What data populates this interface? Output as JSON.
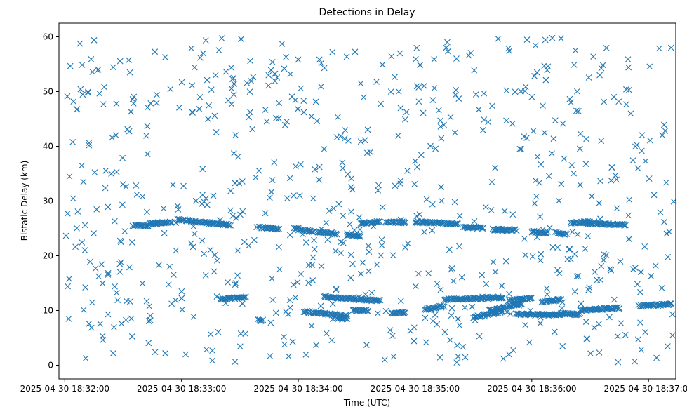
{
  "chart_data": {
    "type": "scatter",
    "title": "Detections in Delay",
    "xlabel": "Time (UTC)",
    "ylabel": "Bistatic Delay (km)",
    "marker": "x",
    "color": "#1f77b4",
    "grid": false,
    "legend": "none",
    "xlim": [
      "2025-04-30 18:31:57",
      "2025-04-30 18:37:14"
    ],
    "ylim": [
      -2.5,
      62.5
    ],
    "x_ticks": [
      "2025-04-30 18:32:00",
      "2025-04-30 18:33:00",
      "2025-04-30 18:34:00",
      "2025-04-30 18:35:00",
      "2025-04-30 18:36:00",
      "2025-04-30 18:37:00"
    ],
    "y_ticks": [
      0,
      10,
      20,
      30,
      40,
      50,
      60
    ],
    "tracks": [
      {
        "x_start": "2025-04-30 18:32:35",
        "x_end": "2025-04-30 18:32:43",
        "y_start": 25.5,
        "y_end": 25.5
      },
      {
        "x_start": "2025-04-30 18:32:43",
        "x_end": "2025-04-30 18:32:55",
        "y_start": 25.8,
        "y_end": 26.2
      },
      {
        "x_start": "2025-04-30 18:32:58",
        "x_end": "2025-04-30 18:33:25",
        "y_start": 26.6,
        "y_end": 25.6
      },
      {
        "x_start": "2025-04-30 18:33:20",
        "x_end": "2025-04-30 18:33:33",
        "y_start": 12.0,
        "y_end": 12.5
      },
      {
        "x_start": "2025-04-30 18:33:40",
        "x_end": "2025-04-30 18:33:42",
        "y_start": 8.2,
        "y_end": 8.2
      },
      {
        "x_start": "2025-04-30 18:33:40",
        "x_end": "2025-04-30 18:33:50",
        "y_start": 25.2,
        "y_end": 24.8
      },
      {
        "x_start": "2025-04-30 18:33:58",
        "x_end": "2025-04-30 18:34:08",
        "y_start": 24.9,
        "y_end": 24.4
      },
      {
        "x_start": "2025-04-30 18:34:10",
        "x_end": "2025-04-30 18:34:20",
        "y_start": 24.3,
        "y_end": 24.0
      },
      {
        "x_start": "2025-04-30 18:34:03",
        "x_end": "2025-04-30 18:34:25",
        "y_start": 9.8,
        "y_end": 9.0
      },
      {
        "x_start": "2025-04-30 18:34:13",
        "x_end": "2025-04-30 18:34:42",
        "y_start": 12.5,
        "y_end": 11.8
      },
      {
        "x_start": "2025-04-30 18:34:20",
        "x_end": "2025-04-30 18:34:25",
        "y_start": 8.5,
        "y_end": 8.5
      },
      {
        "x_start": "2025-04-30 18:34:25",
        "x_end": "2025-04-30 18:34:32",
        "y_start": 23.8,
        "y_end": 23.6
      },
      {
        "x_start": "2025-04-30 18:34:28",
        "x_end": "2025-04-30 18:34:36",
        "y_start": 10.0,
        "y_end": 10.0
      },
      {
        "x_start": "2025-04-30 18:34:32",
        "x_end": "2025-04-30 18:34:42",
        "y_start": 26.0,
        "y_end": 26.2
      },
      {
        "x_start": "2025-04-30 18:34:45",
        "x_end": "2025-04-30 18:34:55",
        "y_start": 26.2,
        "y_end": 26.1
      },
      {
        "x_start": "2025-04-30 18:34:48",
        "x_end": "2025-04-30 18:34:55",
        "y_start": 9.6,
        "y_end": 9.6
      },
      {
        "x_start": "2025-04-30 18:35:00",
        "x_end": "2025-04-30 18:35:22",
        "y_start": 26.2,
        "y_end": 25.8
      },
      {
        "x_start": "2025-04-30 18:35:05",
        "x_end": "2025-04-30 18:35:15",
        "y_start": 10.2,
        "y_end": 10.8
      },
      {
        "x_start": "2025-04-30 18:35:15",
        "x_end": "2025-04-30 18:35:45",
        "y_start": 12.0,
        "y_end": 12.4
      },
      {
        "x_start": "2025-04-30 18:35:25",
        "x_end": "2025-04-30 18:35:35",
        "y_start": 25.2,
        "y_end": 25.1
      },
      {
        "x_start": "2025-04-30 18:35:30",
        "x_end": "2025-04-30 18:35:45",
        "y_start": 8.8,
        "y_end": 9.8
      },
      {
        "x_start": "2025-04-30 18:35:38",
        "x_end": "2025-04-30 18:35:55",
        "y_start": 10.0,
        "y_end": 11.2
      },
      {
        "x_start": "2025-04-30 18:35:40",
        "x_end": "2025-04-30 18:35:52",
        "y_start": 24.8,
        "y_end": 24.7
      },
      {
        "x_start": "2025-04-30 18:35:48",
        "x_end": "2025-04-30 18:36:00",
        "y_start": 11.8,
        "y_end": 12.2
      },
      {
        "x_start": "2025-04-30 18:35:52",
        "x_end": "2025-04-30 18:36:15",
        "y_start": 9.3,
        "y_end": 9.2
      },
      {
        "x_start": "2025-04-30 18:36:00",
        "x_end": "2025-04-30 18:36:08",
        "y_start": 24.4,
        "y_end": 24.2
      },
      {
        "x_start": "2025-04-30 18:36:05",
        "x_end": "2025-04-30 18:36:15",
        "y_start": 11.5,
        "y_end": 12.0
      },
      {
        "x_start": "2025-04-30 18:36:12",
        "x_end": "2025-04-30 18:36:18",
        "y_start": 24.2,
        "y_end": 24.0
      },
      {
        "x_start": "2025-04-30 18:36:15",
        "x_end": "2025-04-30 18:36:25",
        "y_start": 9.4,
        "y_end": 9.3
      },
      {
        "x_start": "2025-04-30 18:36:20",
        "x_end": "2025-04-30 18:36:30",
        "y_start": 26.0,
        "y_end": 26.2
      },
      {
        "x_start": "2025-04-30 18:36:25",
        "x_end": "2025-04-30 18:36:45",
        "y_start": 10.0,
        "y_end": 10.5
      },
      {
        "x_start": "2025-04-30 18:36:28",
        "x_end": "2025-04-30 18:36:48",
        "y_start": 26.0,
        "y_end": 25.6
      },
      {
        "x_start": "2025-04-30 18:36:55",
        "x_end": "2025-04-30 18:37:12",
        "y_start": 10.8,
        "y_end": 11.2
      }
    ],
    "scattered_detections": {
      "x_range": [
        "2025-04-30 18:32:00",
        "2025-04-30 18:37:13"
      ],
      "y_range": [
        0.5,
        59.8
      ],
      "count": 720
    }
  }
}
